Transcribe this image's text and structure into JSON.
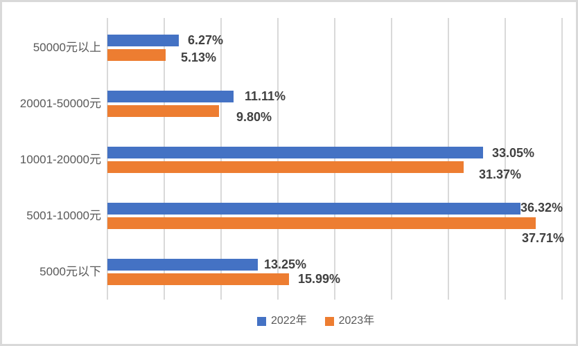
{
  "chart_data": {
    "type": "bar",
    "orientation": "horizontal",
    "title": "",
    "categories": [
      "50000元以上",
      "20001-50000元",
      "10001-20000元",
      "5001-10000元",
      "5000元以下"
    ],
    "series": [
      {
        "name": "2022年",
        "color": "#4472C4",
        "values": [
          6.27,
          11.11,
          33.05,
          36.32,
          13.25
        ],
        "labels": [
          "6.27%",
          "11.11%",
          "33.05%",
          "36.32%",
          "13.25%"
        ]
      },
      {
        "name": "2023年",
        "color": "#ED7D31",
        "values": [
          5.13,
          9.8,
          31.37,
          37.71,
          15.99
        ],
        "labels": [
          "5.13%",
          "9.80%",
          "31.37%",
          "37.71%",
          "15.99%"
        ]
      }
    ],
    "xlim": [
      0,
      40
    ],
    "gridline_step": 5,
    "grid": true,
    "x_tick_labels_visible": false,
    "legend_position": "bottom"
  },
  "legend": {
    "items": [
      {
        "label": "2022年",
        "color": "#4472C4"
      },
      {
        "label": "2023年",
        "color": "#ED7D31"
      }
    ]
  },
  "colors": {
    "grid": "#D9D9D9",
    "category_text": "#595959",
    "data_label_text": "#404040",
    "legend_text": "#595959",
    "background": "#FFFFFF",
    "border": "#D9D9D9"
  }
}
